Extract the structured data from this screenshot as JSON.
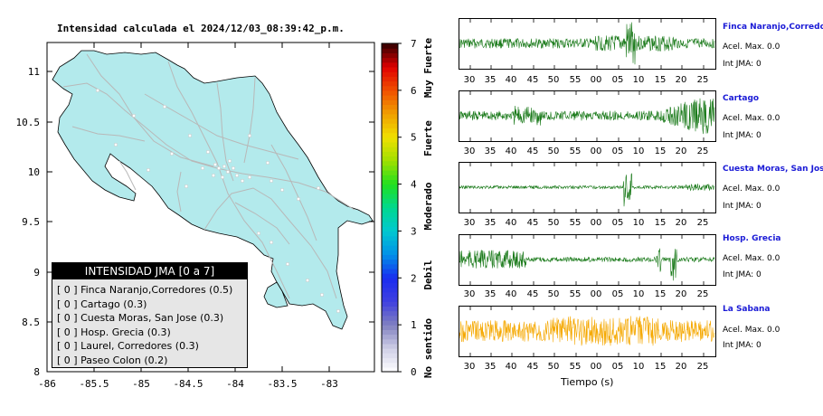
{
  "map": {
    "title": "Intensidad calculada el 2024/12/03_08:39:42_p.m.",
    "x_ticks": [
      "-86",
      "-85.5",
      "-85",
      "-84.5",
      "-84",
      "-83.5",
      "-83"
    ],
    "y_ticks": [
      "11",
      "10.5",
      "10",
      "9.5",
      "9",
      "8.5",
      "8"
    ],
    "land_color": "#b3eaec",
    "road_color": "#b8b8b8"
  },
  "colorbar": {
    "values": [
      "0",
      "1",
      "2",
      "3",
      "4",
      "5",
      "6",
      "7"
    ],
    "labels": [
      "No sentido",
      "Debil",
      "Moderado",
      "Fuerte",
      "Muy Fuerte"
    ]
  },
  "legend": {
    "title": "INTENSIDAD JMA [0 a 7]",
    "rows": [
      "[ 0 ] Finca Naranjo,Corredores (0.5)",
      "[ 0 ] Cartago (0.3)",
      "[ 0 ] Cuesta Moras, San Jose (0.3)",
      "[ 0 ] Hosp. Grecia (0.3)",
      "[ 0 ] Laurel, Corredores (0.3)",
      "[ 0 ] Paseo Colon (0.2)"
    ]
  },
  "stations": [
    {
      "name": "Finca Naranjo,Corredores",
      "acel": "Acel. Max. 0.0",
      "jma": "Int JMA: 0",
      "color": "#1a7a1a"
    },
    {
      "name": "Cartago",
      "acel": "Acel. Max. 0.0",
      "jma": "Int JMA: 0",
      "color": "#1a7a1a"
    },
    {
      "name": "Cuesta Moras, San Jose",
      "acel": "Acel. Max. 0.0",
      "jma": "Int JMA: 0",
      "color": "#1a7a1a"
    },
    {
      "name": "Hosp. Grecia",
      "acel": "Acel. Max. 0.0",
      "jma": "Int JMA: 0",
      "color": "#1a7a1a"
    },
    {
      "name": "La Sabana",
      "acel": "Acel. Max. 0.0",
      "jma": "Int JMA: 0",
      "color": "#f5a800"
    }
  ],
  "time_ticks": [
    "30",
    "35",
    "40",
    "45",
    "50",
    "55",
    "00",
    "05",
    "10",
    "15",
    "20",
    "25"
  ],
  "time_axis_label": "Tiempo (s)"
}
